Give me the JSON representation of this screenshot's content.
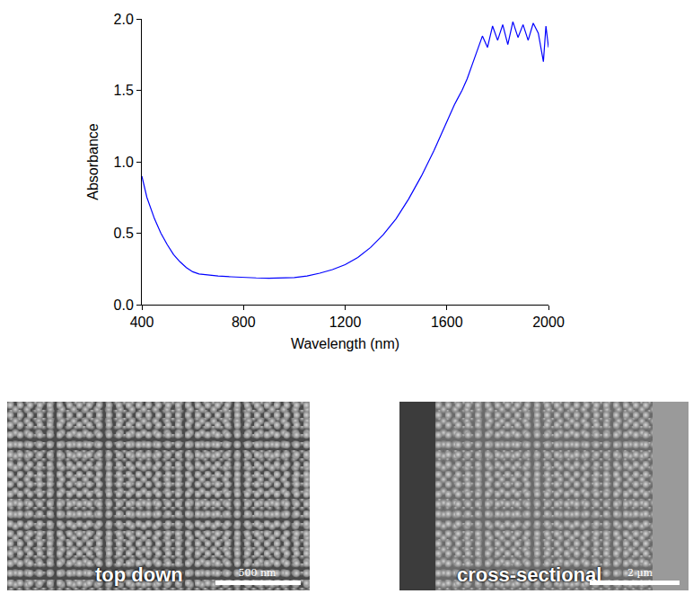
{
  "chart_data": {
    "type": "line",
    "x_label": "Wavelength (nm)",
    "y_label": "Absorbance",
    "x": [
      400,
      420,
      450,
      475,
      500,
      525,
      550,
      575,
      600,
      625,
      650,
      700,
      750,
      800,
      850,
      900,
      950,
      1000,
      1050,
      1100,
      1150,
      1200,
      1250,
      1300,
      1350,
      1400,
      1450,
      1500,
      1550,
      1600,
      1630,
      1660,
      1680,
      1700,
      1720,
      1740,
      1760,
      1780,
      1800,
      1820,
      1840,
      1860,
      1880,
      1900,
      1920,
      1940,
      1960,
      1980,
      1990,
      2000
    ],
    "series": [
      {
        "name": "Absorbance",
        "color": "#0000ff",
        "values": [
          0.9,
          0.75,
          0.6,
          0.5,
          0.42,
          0.35,
          0.3,
          0.26,
          0.23,
          0.215,
          0.21,
          0.2,
          0.195,
          0.19,
          0.187,
          0.185,
          0.186,
          0.19,
          0.2,
          0.22,
          0.245,
          0.28,
          0.33,
          0.4,
          0.49,
          0.6,
          0.74,
          0.9,
          1.08,
          1.28,
          1.4,
          1.5,
          1.58,
          1.68,
          1.78,
          1.88,
          1.8,
          1.95,
          1.85,
          1.96,
          1.82,
          1.98,
          1.87,
          1.96,
          1.85,
          1.97,
          1.9,
          1.7,
          1.95,
          1.8
        ]
      }
    ],
    "xlim": [
      400,
      2000
    ],
    "xticks": [
      400,
      800,
      1200,
      1600,
      2000
    ],
    "ylim": [
      0,
      2
    ],
    "yticks": [
      {
        "value": 0,
        "label": "0.0"
      },
      0.5,
      {
        "value": 1,
        "label": "1.0"
      },
      1.5,
      {
        "value": 2,
        "label": "2.0"
      }
    ],
    "grid": false
  },
  "images": [
    {
      "label": "top down",
      "scale_bar": "500 nm"
    },
    {
      "label": "cross-sectional",
      "scale_bar": "2 µm"
    }
  ]
}
